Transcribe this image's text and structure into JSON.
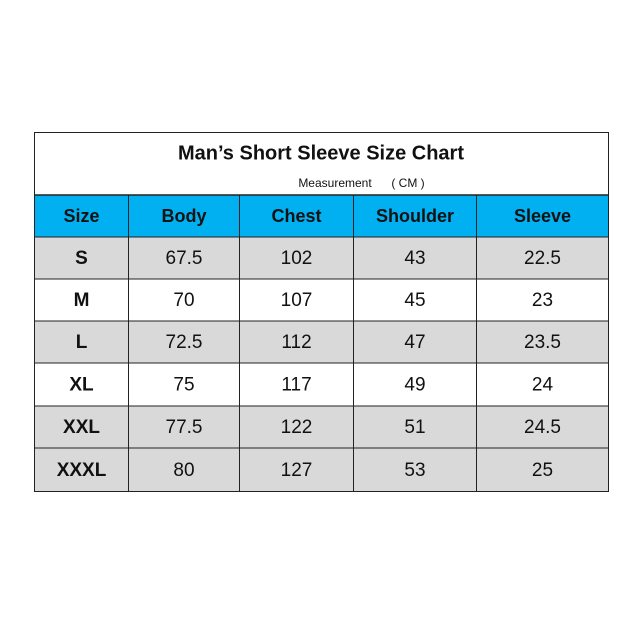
{
  "header": {
    "title": "Man’s Short Sleeve Size Chart",
    "subtitle": "Measurement",
    "unit": "( CM )"
  },
  "table": {
    "columns": [
      "Size",
      "Body",
      "Chest",
      "Shoulder",
      "Sleeve"
    ],
    "rows": [
      [
        "S",
        67.5,
        102,
        43,
        22.5
      ],
      [
        "M",
        70,
        107,
        45,
        23
      ],
      [
        "L",
        72.5,
        112,
        47,
        23.5
      ],
      [
        "XL",
        75,
        117,
        49,
        24
      ],
      [
        "XXL",
        77.5,
        122,
        51,
        24.5
      ],
      [
        "XXXL",
        80,
        127,
        53,
        25
      ]
    ]
  }
}
